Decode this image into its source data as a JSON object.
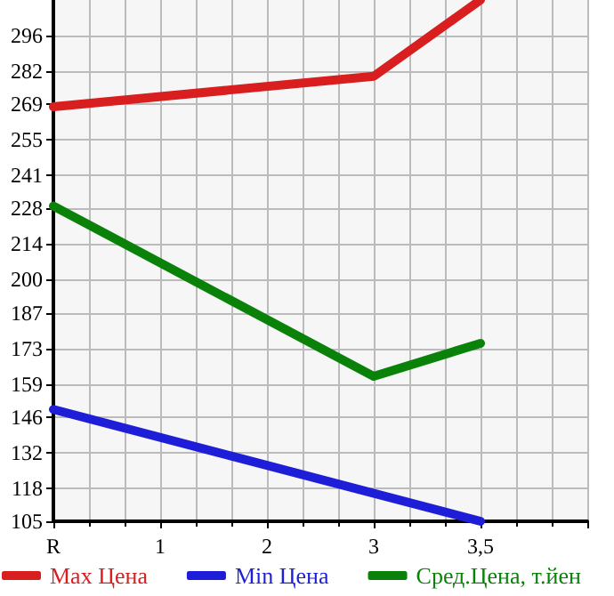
{
  "chart_data": {
    "type": "line",
    "categories": [
      "R",
      "1",
      "2",
      "3",
      "3,5",
      null
    ],
    "series": [
      {
        "name": "Max Цена",
        "color": "#d81e1e",
        "values": [
          268,
          null,
          null,
          280,
          310,
          null
        ]
      },
      {
        "name": "Min Цена",
        "color": "#1e1ed8",
        "values": [
          149,
          null,
          null,
          null,
          105,
          null
        ]
      },
      {
        "name": "Сред.Цена, т.йен",
        "color": "#0a820a",
        "values": [
          229,
          null,
          null,
          162,
          175,
          null
        ]
      }
    ],
    "ylim": [
      105,
      310
    ],
    "yticks": [
      105,
      118,
      132,
      146,
      159,
      173,
      187,
      200,
      214,
      228,
      241,
      255,
      269,
      282,
      296
    ],
    "grid": true,
    "legend": "bottom",
    "marker": "none",
    "line_style": "solid"
  }
}
